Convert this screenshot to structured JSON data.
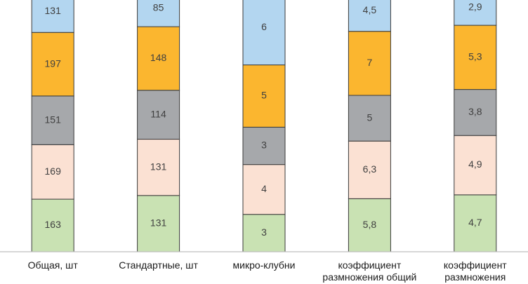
{
  "chart_data": {
    "type": "bar",
    "stacked": true,
    "normalized_100": true,
    "categories": [
      [
        "Общая, шт"
      ],
      [
        "Стандартные, шт"
      ],
      [
        "микро-клубни"
      ],
      [
        "коэффициент",
        "размножения общий"
      ],
      [
        "коэффициент",
        "размножения"
      ]
    ],
    "series": [
      {
        "values": [
          163,
          131,
          3,
          5.8,
          4.7
        ],
        "labels": [
          "163",
          "131",
          "3",
          "5,8",
          "4,7"
        ],
        "color": "#c9e2b3"
      },
      {
        "values": [
          169,
          131,
          4,
          6.3,
          4.9
        ],
        "labels": [
          "169",
          "131",
          "4",
          "6,3",
          "4,9"
        ],
        "color": "#fbe1d3"
      },
      {
        "values": [
          151,
          114,
          3,
          5,
          3.8
        ],
        "labels": [
          "151",
          "114",
          "3",
          "5",
          "3,8"
        ],
        "color": "#a6a8ab"
      },
      {
        "values": [
          197,
          148,
          5,
          7,
          5.3
        ],
        "labels": [
          "197",
          "148",
          "5",
          "7",
          "5,3"
        ],
        "color": "#fbb62f"
      },
      {
        "values": [
          131,
          85,
          6,
          4.5,
          2.9
        ],
        "labels": [
          "131",
          "85",
          "6",
          "4,5",
          "2,9"
        ],
        "color": "#b3d6f0"
      }
    ],
    "legend": "none",
    "grid": false
  }
}
